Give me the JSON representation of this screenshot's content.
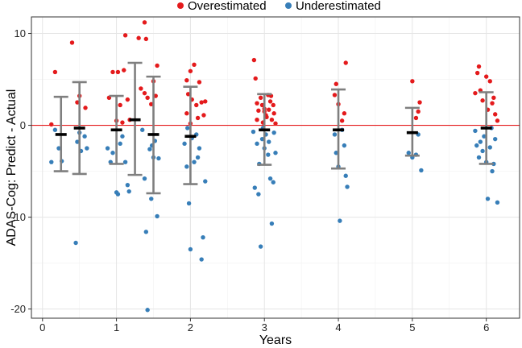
{
  "chart_data": {
    "type": "scatter",
    "xlabel": "Years",
    "ylabel": "ADAS-Cog: Predict - Actual",
    "xlim": [
      -0.15,
      6.45
    ],
    "ylim": [
      -21.0,
      11.8
    ],
    "x_ticks": [
      0,
      1,
      2,
      3,
      4,
      5,
      6
    ],
    "y_ticks": [
      -20,
      -10,
      0,
      10
    ],
    "grid": true,
    "legend_position": "top",
    "reference_line": {
      "y": 0,
      "color": "#e41a1c"
    },
    "colors": {
      "Overestimated": "#e41a1c",
      "Underestimated": "#377eb8",
      "errorbar": "#7f7f7f",
      "mean": "#000000"
    },
    "series": [
      {
        "name": "Overestimated",
        "color": "#e41a1c",
        "points": [
          [
            0.17,
            5.8
          ],
          [
            0.4,
            9
          ],
          [
            0.47,
            2.5
          ],
          [
            0.5,
            3.2
          ],
          [
            0.58,
            1.9
          ],
          [
            0.12,
            0.1
          ],
          [
            0.9,
            3
          ],
          [
            0.95,
            5.8
          ],
          [
            1.0,
            0.5
          ],
          [
            1.02,
            5.8
          ],
          [
            1.05,
            2.2
          ],
          [
            1.08,
            0.3
          ],
          [
            1.1,
            6.0
          ],
          [
            1.12,
            9.8
          ],
          [
            1.15,
            2.8
          ],
          [
            1.18,
            0.6
          ],
          [
            1.3,
            9.5
          ],
          [
            1.33,
            4.0
          ],
          [
            1.38,
            11.2
          ],
          [
            1.4,
            9.4
          ],
          [
            1.42,
            3.0
          ],
          [
            1.47,
            2.3
          ],
          [
            1.5,
            4.8
          ],
          [
            1.53,
            3.2
          ],
          [
            1.55,
            6.5
          ],
          [
            1.38,
            3.5
          ],
          [
            1.95,
            4.9
          ],
          [
            1.97,
            3.4
          ],
          [
            2.0,
            5.9
          ],
          [
            2.02,
            2.8
          ],
          [
            2.05,
            6.6
          ],
          [
            2.08,
            2.2
          ],
          [
            2.1,
            0.8
          ],
          [
            2.12,
            4.7
          ],
          [
            2.15,
            2.5
          ],
          [
            2.18,
            1.1
          ],
          [
            2.2,
            2.6
          ],
          [
            1.95,
            1.3
          ],
          [
            2.0,
            0.2
          ],
          [
            2.86,
            7.1
          ],
          [
            2.88,
            5.1
          ],
          [
            2.9,
            2.4
          ],
          [
            2.92,
            1.6
          ],
          [
            2.95,
            3.0
          ],
          [
            2.97,
            2.2
          ],
          [
            3.0,
            1.8
          ],
          [
            3.02,
            1.1
          ],
          [
            3.05,
            3.3
          ],
          [
            3.08,
            2.6
          ],
          [
            3.1,
            0.6
          ],
          [
            3.12,
            2.2
          ],
          [
            2.98,
            0.3
          ],
          [
            3.0,
            1.5
          ],
          [
            3.03,
            0.9
          ],
          [
            3.06,
            1.7
          ],
          [
            3.09,
            3.2
          ],
          [
            3.13,
            1.3
          ],
          [
            3.15,
            0.2
          ],
          [
            2.9,
            0.6
          ],
          [
            3.95,
            3.3
          ],
          [
            3.97,
            4.5
          ],
          [
            4.0,
            2.3
          ],
          [
            4.05,
            0.5
          ],
          [
            4.08,
            1.3
          ],
          [
            4.1,
            6.8
          ],
          [
            5.0,
            4.8
          ],
          [
            5.05,
            0.8
          ],
          [
            5.08,
            1.5
          ],
          [
            5.1,
            2.5
          ],
          [
            5.85,
            3.5
          ],
          [
            5.88,
            5.7
          ],
          [
            5.9,
            6.4
          ],
          [
            5.92,
            3.8
          ],
          [
            5.95,
            2.7
          ],
          [
            6.0,
            5.3
          ],
          [
            6.02,
            1.7
          ],
          [
            6.05,
            4.8
          ],
          [
            6.08,
            2.4
          ],
          [
            6.1,
            3.0
          ],
          [
            6.12,
            1.2
          ],
          [
            6.15,
            0.5
          ]
        ]
      },
      {
        "name": "Underestimated",
        "color": "#377eb8",
        "points": [
          [
            0.12,
            -4.0
          ],
          [
            0.17,
            -0.5
          ],
          [
            0.22,
            -2.5
          ],
          [
            0.26,
            -3.9
          ],
          [
            0.45,
            -12.8
          ],
          [
            0.5,
            -0.8
          ],
          [
            0.52,
            -2.8
          ],
          [
            0.57,
            -1.2
          ],
          [
            0.6,
            -2.5
          ],
          [
            0.47,
            -1.8
          ],
          [
            0.88,
            -2.5
          ],
          [
            0.92,
            -4.0
          ],
          [
            0.95,
            -3.0
          ],
          [
            1.0,
            -7.3
          ],
          [
            1.02,
            -7.5
          ],
          [
            1.05,
            -2.0
          ],
          [
            1.08,
            -1.2
          ],
          [
            1.12,
            -4.0
          ],
          [
            1.15,
            -6.5
          ],
          [
            1.17,
            -7.2
          ],
          [
            1.35,
            -0.5
          ],
          [
            1.38,
            -5.8
          ],
          [
            1.4,
            -11.6
          ],
          [
            1.42,
            -20.1
          ],
          [
            1.45,
            -2.6
          ],
          [
            1.47,
            -8.0
          ],
          [
            1.5,
            -3.5
          ],
          [
            1.52,
            -1.7
          ],
          [
            1.55,
            -9.9
          ],
          [
            1.57,
            -3.6
          ],
          [
            1.48,
            -2.2
          ],
          [
            1.92,
            -2.0
          ],
          [
            1.95,
            -4.5
          ],
          [
            1.98,
            -8.5
          ],
          [
            2.0,
            -13.5
          ],
          [
            2.02,
            -1.4
          ],
          [
            2.05,
            -4.0
          ],
          [
            2.08,
            -1.0
          ],
          [
            2.1,
            -3.5
          ],
          [
            2.12,
            -2.5
          ],
          [
            2.15,
            -14.6
          ],
          [
            2.17,
            -12.2
          ],
          [
            2.2,
            -6.1
          ],
          [
            1.96,
            -0.3
          ],
          [
            2.85,
            -0.7
          ],
          [
            2.87,
            -6.8
          ],
          [
            2.9,
            -2.0
          ],
          [
            2.92,
            -7.5
          ],
          [
            2.95,
            -13.2
          ],
          [
            2.97,
            -1.5
          ],
          [
            3.0,
            -2.5
          ],
          [
            3.02,
            -1.0
          ],
          [
            3.05,
            -3.2
          ],
          [
            3.08,
            -5.8
          ],
          [
            3.1,
            -10.7
          ],
          [
            3.12,
            -6.2
          ],
          [
            3.15,
            -3.0
          ],
          [
            2.98,
            -0.3
          ],
          [
            3.06,
            -1.8
          ],
          [
            3.13,
            -0.8
          ],
          [
            2.93,
            -4.2
          ],
          [
            3.95,
            -1.0
          ],
          [
            3.97,
            -3.0
          ],
          [
            4.0,
            -4.5
          ],
          [
            4.02,
            -10.4
          ],
          [
            4.05,
            -0.5
          ],
          [
            4.08,
            -2.2
          ],
          [
            4.1,
            -5.5
          ],
          [
            4.12,
            -6.7
          ],
          [
            4.95,
            -3.0
          ],
          [
            5.0,
            -3.5
          ],
          [
            5.05,
            -3.2
          ],
          [
            5.08,
            -1.0
          ],
          [
            5.12,
            -4.9
          ],
          [
            5.85,
            -0.6
          ],
          [
            5.87,
            -2.2
          ],
          [
            5.9,
            -3.5
          ],
          [
            5.92,
            -1.8
          ],
          [
            5.95,
            -2.8
          ],
          [
            5.97,
            -1.2
          ],
          [
            6.0,
            -4.0
          ],
          [
            6.02,
            -8.0
          ],
          [
            6.05,
            -2.4
          ],
          [
            6.08,
            -5.0
          ],
          [
            6.1,
            -4.2
          ],
          [
            6.12,
            -1.5
          ],
          [
            6.15,
            -8.4
          ],
          [
            6.07,
            -0.3
          ]
        ]
      }
    ],
    "summary": [
      {
        "x": 0.25,
        "mean": -1.0,
        "lower": -5.0,
        "upper": 3.1
      },
      {
        "x": 0.5,
        "mean": -0.3,
        "lower": -5.3,
        "upper": 4.7
      },
      {
        "x": 1.0,
        "mean": -0.5,
        "lower": -4.2,
        "upper": 3.2
      },
      {
        "x": 1.25,
        "mean": 0.6,
        "lower": -5.4,
        "upper": 6.8
      },
      {
        "x": 1.5,
        "mean": -1.0,
        "lower": -7.4,
        "upper": 5.3
      },
      {
        "x": 2.0,
        "mean": -1.2,
        "lower": -6.4,
        "upper": 4.2
      },
      {
        "x": 3.0,
        "mean": -0.5,
        "lower": -4.3,
        "upper": 3.4
      },
      {
        "x": 4.0,
        "mean": -0.5,
        "lower": -4.7,
        "upper": 3.9
      },
      {
        "x": 5.0,
        "mean": -0.8,
        "lower": -3.3,
        "upper": 1.9
      },
      {
        "x": 6.0,
        "mean": -0.3,
        "lower": -4.2,
        "upper": 3.6
      }
    ]
  }
}
